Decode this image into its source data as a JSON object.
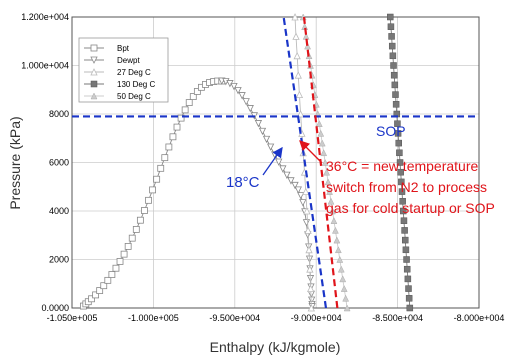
{
  "chart_data": {
    "type": "line",
    "xlabel": "Enthalpy (kJ/kgmole)",
    "ylabel": "Pressure (kPa)",
    "xlim": [
      -105000,
      -80000
    ],
    "ylim": [
      0,
      12000
    ],
    "xticks": [
      -105000,
      -100000,
      -95000,
      -90000,
      -85000,
      -80000
    ],
    "xtick_labels": [
      "-1.050e+005",
      "-1.000e+005",
      "-9.500e+004",
      "-9.000e+004",
      "-8.500e+004",
      "-8.000e+004"
    ],
    "yticks": [
      0,
      2000,
      4000,
      6000,
      8000,
      10000,
      12000
    ],
    "ytick_labels": [
      "0.0000",
      "2000",
      "4000",
      "6000",
      "8000",
      "1.000e+004",
      "1.200e+004"
    ],
    "grid": true,
    "legend_position": "top-left",
    "series": [
      {
        "name": "Bpt",
        "marker": "square-open",
        "color": "#888888",
        "points": [
          [
            -104300,
            80
          ],
          [
            -104150,
            170
          ],
          [
            -104000,
            260
          ],
          [
            -103800,
            380
          ],
          [
            -103550,
            540
          ],
          [
            -103300,
            720
          ],
          [
            -103050,
            920
          ],
          [
            -102800,
            1140
          ],
          [
            -102550,
            1380
          ],
          [
            -102300,
            1640
          ],
          [
            -102050,
            1920
          ],
          [
            -101800,
            2220
          ],
          [
            -101550,
            2540
          ],
          [
            -101300,
            2880
          ],
          [
            -101050,
            3240
          ],
          [
            -100800,
            3620
          ],
          [
            -100550,
            4020
          ],
          [
            -100300,
            4440
          ],
          [
            -100050,
            4870
          ],
          [
            -99800,
            5310
          ],
          [
            -99550,
            5760
          ],
          [
            -99300,
            6200
          ],
          [
            -99050,
            6640
          ],
          [
            -98800,
            7060
          ],
          [
            -98550,
            7460
          ],
          [
            -98300,
            7830
          ],
          [
            -98050,
            8170
          ],
          [
            -97800,
            8470
          ],
          [
            -97550,
            8720
          ],
          [
            -97300,
            8930
          ],
          [
            -97050,
            9100
          ],
          [
            -96800,
            9220
          ],
          [
            -96550,
            9300
          ],
          [
            -96300,
            9340
          ],
          [
            -96050,
            9360
          ],
          [
            -95800,
            9360
          ]
        ]
      },
      {
        "name": "Dewpt",
        "marker": "triangle-down-open",
        "color": "#888888",
        "points": [
          [
            -95800,
            9360
          ],
          [
            -95550,
            9340
          ],
          [
            -95300,
            9260
          ],
          [
            -95050,
            9140
          ],
          [
            -94800,
            8970
          ],
          [
            -94550,
            8760
          ],
          [
            -94300,
            8510
          ],
          [
            -94050,
            8230
          ],
          [
            -93800,
            7930
          ],
          [
            -93550,
            7610
          ],
          [
            -93300,
            7290
          ],
          [
            -93050,
            6960
          ],
          [
            -92800,
            6640
          ],
          [
            -92550,
            6320
          ],
          [
            -92300,
            6020
          ],
          [
            -92050,
            5740
          ],
          [
            -91800,
            5480
          ],
          [
            -91550,
            5250
          ],
          [
            -91300,
            5060
          ],
          [
            -91100,
            4870
          ],
          [
            -90950,
            4640
          ],
          [
            -90820,
            4350
          ],
          [
            -90700,
            3970
          ],
          [
            -90600,
            3520
          ],
          [
            -90520,
            3020
          ],
          [
            -90460,
            2520
          ],
          [
            -90410,
            2020
          ],
          [
            -90380,
            1620
          ],
          [
            -90350,
            1220
          ],
          [
            -90320,
            870
          ],
          [
            -90300,
            570
          ],
          [
            -90280,
            330
          ],
          [
            -90260,
            150
          ],
          [
            -90250,
            60
          ]
        ]
      },
      {
        "name": "27 Deg C",
        "marker": "triangle-up-open",
        "color": "#bbbbbb",
        "points": [
          [
            -90300,
            0
          ],
          [
            -90340,
            800
          ],
          [
            -90390,
            1600
          ],
          [
            -90440,
            2400
          ],
          [
            -90500,
            3200
          ],
          [
            -90570,
            4000
          ],
          [
            -90640,
            4800
          ],
          [
            -90720,
            5600
          ],
          [
            -90800,
            6400
          ],
          [
            -90880,
            7200
          ],
          [
            -90960,
            8000
          ],
          [
            -91030,
            8800
          ],
          [
            -91100,
            9600
          ],
          [
            -91170,
            10400
          ],
          [
            -91240,
            11200
          ],
          [
            -91300,
            12000
          ]
        ]
      },
      {
        "name": "130 Deg C",
        "marker": "square-filled",
        "color": "#777777",
        "points": [
          [
            -84250,
            0
          ],
          [
            -84290,
            400
          ],
          [
            -84330,
            800
          ],
          [
            -84370,
            1200
          ],
          [
            -84410,
            1600
          ],
          [
            -84450,
            2000
          ],
          [
            -84490,
            2400
          ],
          [
            -84530,
            2800
          ],
          [
            -84570,
            3200
          ],
          [
            -84610,
            3600
          ],
          [
            -84650,
            4000
          ],
          [
            -84690,
            4400
          ],
          [
            -84730,
            4800
          ],
          [
            -84770,
            5200
          ],
          [
            -84810,
            5600
          ],
          [
            -84850,
            6000
          ],
          [
            -84890,
            6400
          ],
          [
            -84930,
            6800
          ],
          [
            -84970,
            7200
          ],
          [
            -85010,
            7600
          ],
          [
            -85050,
            8000
          ],
          [
            -85090,
            8400
          ],
          [
            -85130,
            8800
          ],
          [
            -85170,
            9200
          ],
          [
            -85210,
            9600
          ],
          [
            -85250,
            10000
          ],
          [
            -85290,
            10400
          ],
          [
            -85330,
            10800
          ],
          [
            -85370,
            11200
          ],
          [
            -85410,
            11600
          ],
          [
            -85450,
            12000
          ]
        ]
      },
      {
        "name": "50 Deg C",
        "marker": "triangle-up-filled",
        "color": "#cccccc",
        "points": [
          [
            -88100,
            0
          ],
          [
            -88190,
            400
          ],
          [
            -88280,
            800
          ],
          [
            -88370,
            1200
          ],
          [
            -88460,
            1600
          ],
          [
            -88550,
            2000
          ],
          [
            -88640,
            2400
          ],
          [
            -88730,
            2800
          ],
          [
            -88820,
            3200
          ],
          [
            -88910,
            3600
          ],
          [
            -89000,
            4000
          ],
          [
            -89090,
            4400
          ],
          [
            -89180,
            4800
          ],
          [
            -89270,
            5200
          ],
          [
            -89360,
            5600
          ],
          [
            -89450,
            6000
          ],
          [
            -89540,
            6400
          ],
          [
            -89630,
            6800
          ],
          [
            -89720,
            7200
          ],
          [
            -89810,
            7600
          ],
          [
            -89900,
            8000
          ],
          [
            -89990,
            8400
          ],
          [
            -90080,
            8800
          ],
          [
            -90170,
            9200
          ],
          [
            -90260,
            9600
          ],
          [
            -90350,
            10000
          ],
          [
            -90440,
            10400
          ],
          [
            -90530,
            10800
          ],
          [
            -90620,
            11200
          ],
          [
            -90710,
            11600
          ],
          [
            -90800,
            12000
          ]
        ]
      }
    ],
    "reference_lines": [
      {
        "id": "sop",
        "type": "horizontal",
        "y": 7900,
        "color": "#1a35c8",
        "dash": true
      },
      {
        "id": "line_18c",
        "type": "segment",
        "from": [
          -89400,
          0
        ],
        "to": [
          -92000,
          12000
        ],
        "color": "#1a35c8",
        "dash": true
      },
      {
        "id": "line_36c",
        "type": "segment",
        "from": [
          -88700,
          0
        ],
        "to": [
          -90750,
          12000
        ],
        "color": "#e0141a",
        "dash": true
      }
    ],
    "annotations": {
      "sop_label": "SOP",
      "blue_label": "18°C",
      "red_label_lines": [
        "36°C = new temperature",
        "switch from N2 to process",
        "gas for cold startup or SOP"
      ]
    },
    "colors": {
      "blue": "#1a35c8",
      "red": "#e0141a",
      "grid": "#cccccc"
    }
  }
}
